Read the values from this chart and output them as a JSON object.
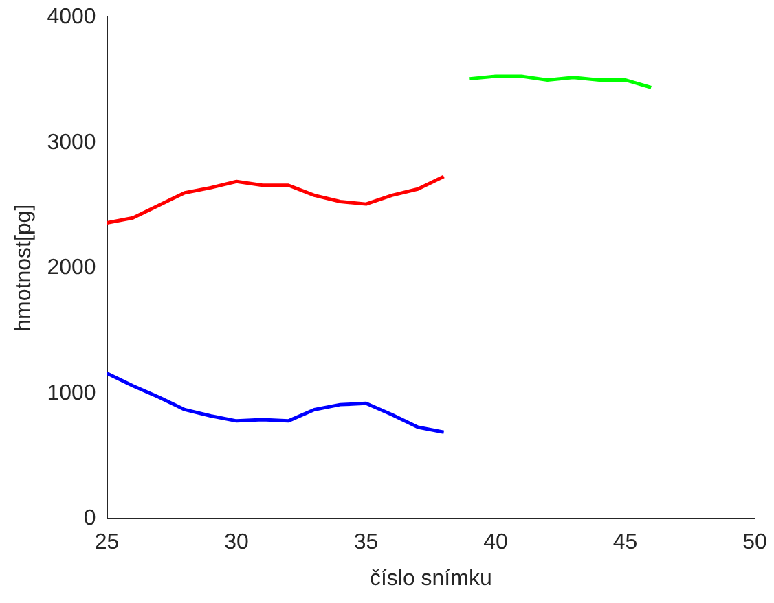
{
  "chart_data": {
    "type": "line",
    "xlabel": "číslo snímku",
    "ylabel": "hmotnost[pg]",
    "xlim": [
      25,
      50
    ],
    "xticks": [
      25,
      30,
      35,
      40,
      45,
      50
    ],
    "ylim": [
      0,
      4000
    ],
    "yticks": [
      0,
      1000,
      2000,
      3000,
      4000
    ],
    "grid": false,
    "legend": false,
    "marker": "none",
    "line_style": "solid",
    "series": [
      {
        "color": "#ff0000",
        "x": [
          25,
          26,
          27,
          28,
          29,
          30,
          31,
          32,
          33,
          34,
          35,
          36,
          37,
          38
        ],
        "values": [
          2360,
          2400,
          2500,
          2600,
          2640,
          2690,
          2660,
          2660,
          2580,
          2530,
          2510,
          2580,
          2630,
          2730
        ]
      },
      {
        "color": "#0000ff",
        "x": [
          25,
          26,
          27,
          28,
          29,
          30,
          31,
          32,
          33,
          34,
          35,
          36,
          37,
          38
        ],
        "values": [
          1160,
          1060,
          970,
          870,
          820,
          780,
          790,
          780,
          870,
          910,
          920,
          830,
          730,
          690
        ]
      },
      {
        "color": "#00ff00",
        "x": [
          39,
          40,
          41,
          42,
          43,
          44,
          45,
          46
        ],
        "values": [
          3510,
          3530,
          3530,
          3500,
          3520,
          3500,
          3500,
          3440
        ]
      }
    ]
  }
}
